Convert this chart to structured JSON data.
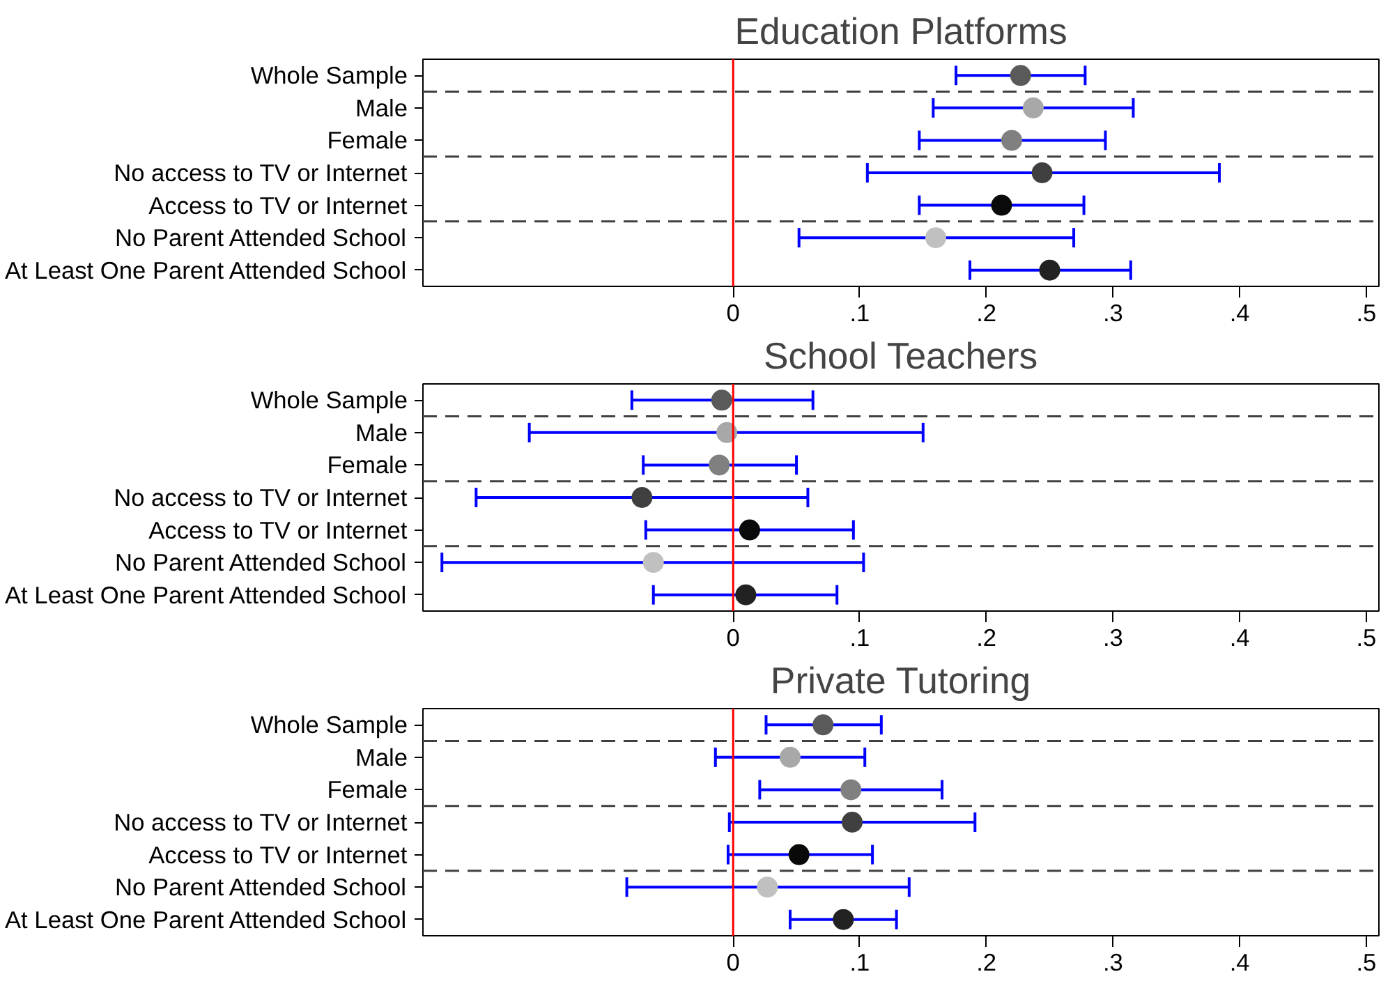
{
  "chart_data": [
    {
      "type": "scatter",
      "orientation": "horizontal",
      "title": "Education Platforms",
      "marker": "circle",
      "categories": [
        "Whole Sample",
        "Male",
        "Female",
        "No access to TV or Internet",
        "Access to TV or Internet",
        "No Parent Attended School",
        "At Least One Parent Attended School"
      ],
      "values": [
        0.227,
        0.237,
        0.22,
        0.244,
        0.212,
        0.16,
        0.25
      ],
      "errors": [
        [
          0.176,
          0.278
        ],
        [
          0.158,
          0.316
        ],
        [
          0.147,
          0.294
        ],
        [
          0.106,
          0.384
        ],
        [
          0.147,
          0.277
        ],
        [
          0.052,
          0.269
        ],
        [
          0.187,
          0.314
        ]
      ],
      "colors": [
        "#5a5a5a",
        "#a8a8a8",
        "#808080",
        "#404040",
        "#0a0a0a",
        "#c0c0c0",
        "#222222"
      ],
      "xlim": [
        -0.245,
        0.51
      ],
      "xticks": [
        0,
        {
          "value": 0.1,
          "label": ".1"
        },
        {
          "value": 0.2,
          "label": ".2"
        },
        {
          "value": 0.3,
          "label": ".3"
        },
        {
          "value": 0.4,
          "label": ".4"
        },
        {
          "value": 0.5,
          "label": ".5"
        }
      ],
      "ref_lines": [
        {
          "axis": "x",
          "value": 0,
          "color": "#ff0000",
          "line_style": "solid"
        }
      ]
    },
    {
      "type": "scatter",
      "orientation": "horizontal",
      "title": "School Teachers",
      "marker": "circle",
      "categories": [
        "Whole Sample",
        "Male",
        "Female",
        "No access to TV or Internet",
        "Access to TV or Internet",
        "No Parent Attended School",
        "At Least One Parent Attended School"
      ],
      "values": [
        -0.009,
        -0.005,
        -0.011,
        -0.072,
        0.013,
        -0.063,
        0.01
      ],
      "errors": [
        [
          -0.08,
          0.063
        ],
        [
          -0.161,
          0.15
        ],
        [
          -0.071,
          0.05
        ],
        [
          -0.203,
          0.059
        ],
        [
          -0.069,
          0.095
        ],
        [
          -0.23,
          0.103
        ],
        [
          -0.063,
          0.082
        ]
      ],
      "colors": [
        "#5a5a5a",
        "#a8a8a8",
        "#808080",
        "#404040",
        "#0a0a0a",
        "#c0c0c0",
        "#222222"
      ],
      "xlim": [
        -0.245,
        0.51
      ],
      "xticks": [
        0,
        {
          "value": 0.1,
          "label": ".1"
        },
        {
          "value": 0.2,
          "label": ".2"
        },
        {
          "value": 0.3,
          "label": ".3"
        },
        {
          "value": 0.4,
          "label": ".4"
        },
        {
          "value": 0.5,
          "label": ".5"
        }
      ],
      "ref_lines": [
        {
          "axis": "x",
          "value": 0,
          "color": "#ff0000",
          "line_style": "solid"
        }
      ]
    },
    {
      "type": "scatter",
      "orientation": "horizontal",
      "title": "Private Tutoring",
      "marker": "circle",
      "categories": [
        "Whole Sample",
        "Male",
        "Female",
        "No access to TV or Internet",
        "Access to TV or Internet",
        "No Parent Attended School",
        "At Least One Parent Attended School"
      ],
      "values": [
        0.071,
        0.045,
        0.093,
        0.094,
        0.052,
        0.027,
        0.087
      ],
      "errors": [
        [
          0.026,
          0.117
        ],
        [
          -0.014,
          0.104
        ],
        [
          0.021,
          0.165
        ],
        [
          -0.003,
          0.191
        ],
        [
          -0.004,
          0.11
        ],
        [
          -0.084,
          0.139
        ],
        [
          0.045,
          0.129
        ]
      ],
      "colors": [
        "#5a5a5a",
        "#a8a8a8",
        "#808080",
        "#404040",
        "#0a0a0a",
        "#c0c0c0",
        "#222222"
      ],
      "xlim": [
        -0.245,
        0.51
      ],
      "xticks": [
        0,
        {
          "value": 0.1,
          "label": ".1"
        },
        {
          "value": 0.2,
          "label": ".2"
        },
        {
          "value": 0.3,
          "label": ".3"
        },
        {
          "value": 0.4,
          "label": ".4"
        },
        {
          "value": 0.5,
          "label": ".5"
        }
      ],
      "ref_lines": [
        {
          "axis": "x",
          "value": 0,
          "color": "#ff0000",
          "line_style": "solid"
        }
      ]
    }
  ]
}
